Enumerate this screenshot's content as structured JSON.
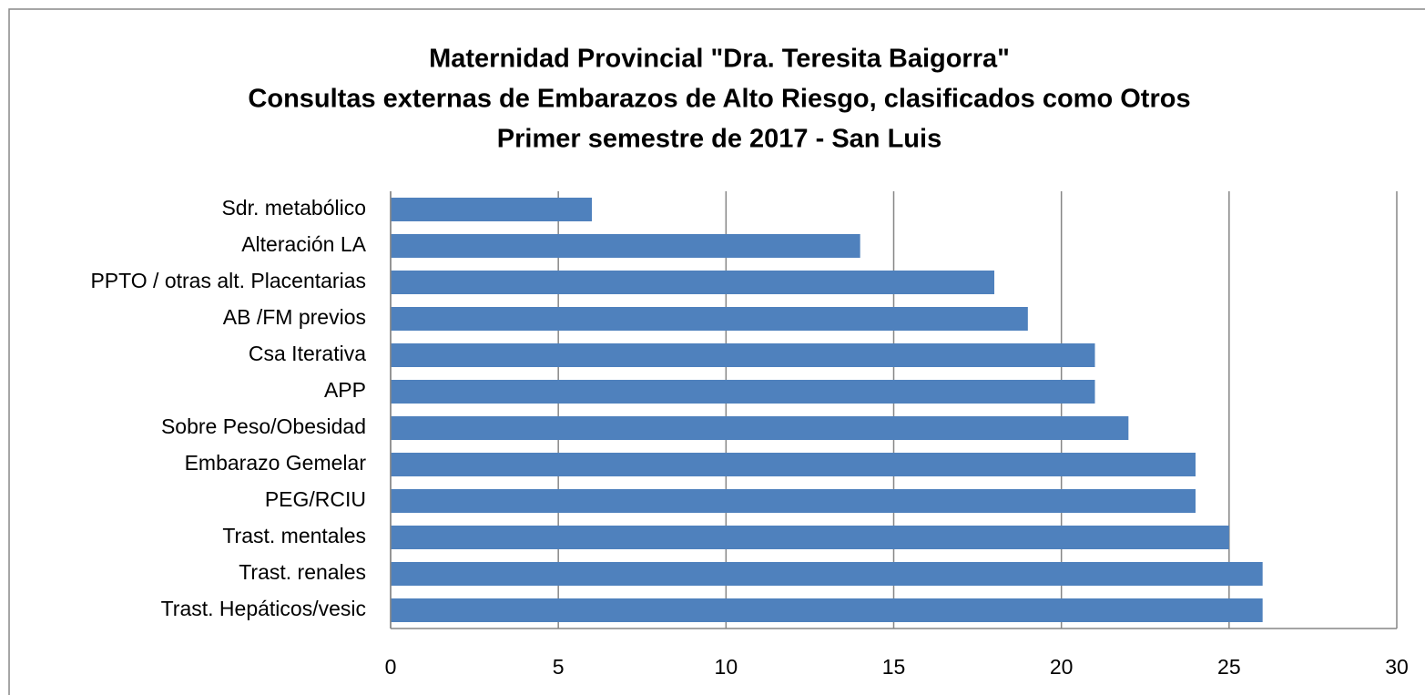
{
  "chart_data": {
    "type": "bar",
    "orientation": "horizontal",
    "title": [
      "Maternidad Provincial \"Dra. Teresita Baigorra\"",
      "Consultas externas de Embarazos de Alto Riesgo, clasificados como Otros",
      "Primer semestre de 2017 - San Luis"
    ],
    "categories": [
      "Sdr. metabólico",
      "Alteración LA",
      "PPTO / otras alt. Placentarias",
      "AB /FM previos",
      "Csa Iterativa",
      "APP",
      "Sobre Peso/Obesidad",
      "Embarazo Gemelar",
      "PEG/RCIU",
      "Trast. mentales",
      "Trast. renales",
      "Trast. Hepáticos/vesic"
    ],
    "values": [
      6,
      14,
      18,
      19,
      21,
      21,
      22,
      24,
      24,
      25,
      26,
      26
    ],
    "color": "#4f81bd",
    "xlim": [
      0,
      30
    ],
    "xticks": [
      0,
      5,
      10,
      15,
      20,
      25,
      30
    ],
    "grid": true
  }
}
